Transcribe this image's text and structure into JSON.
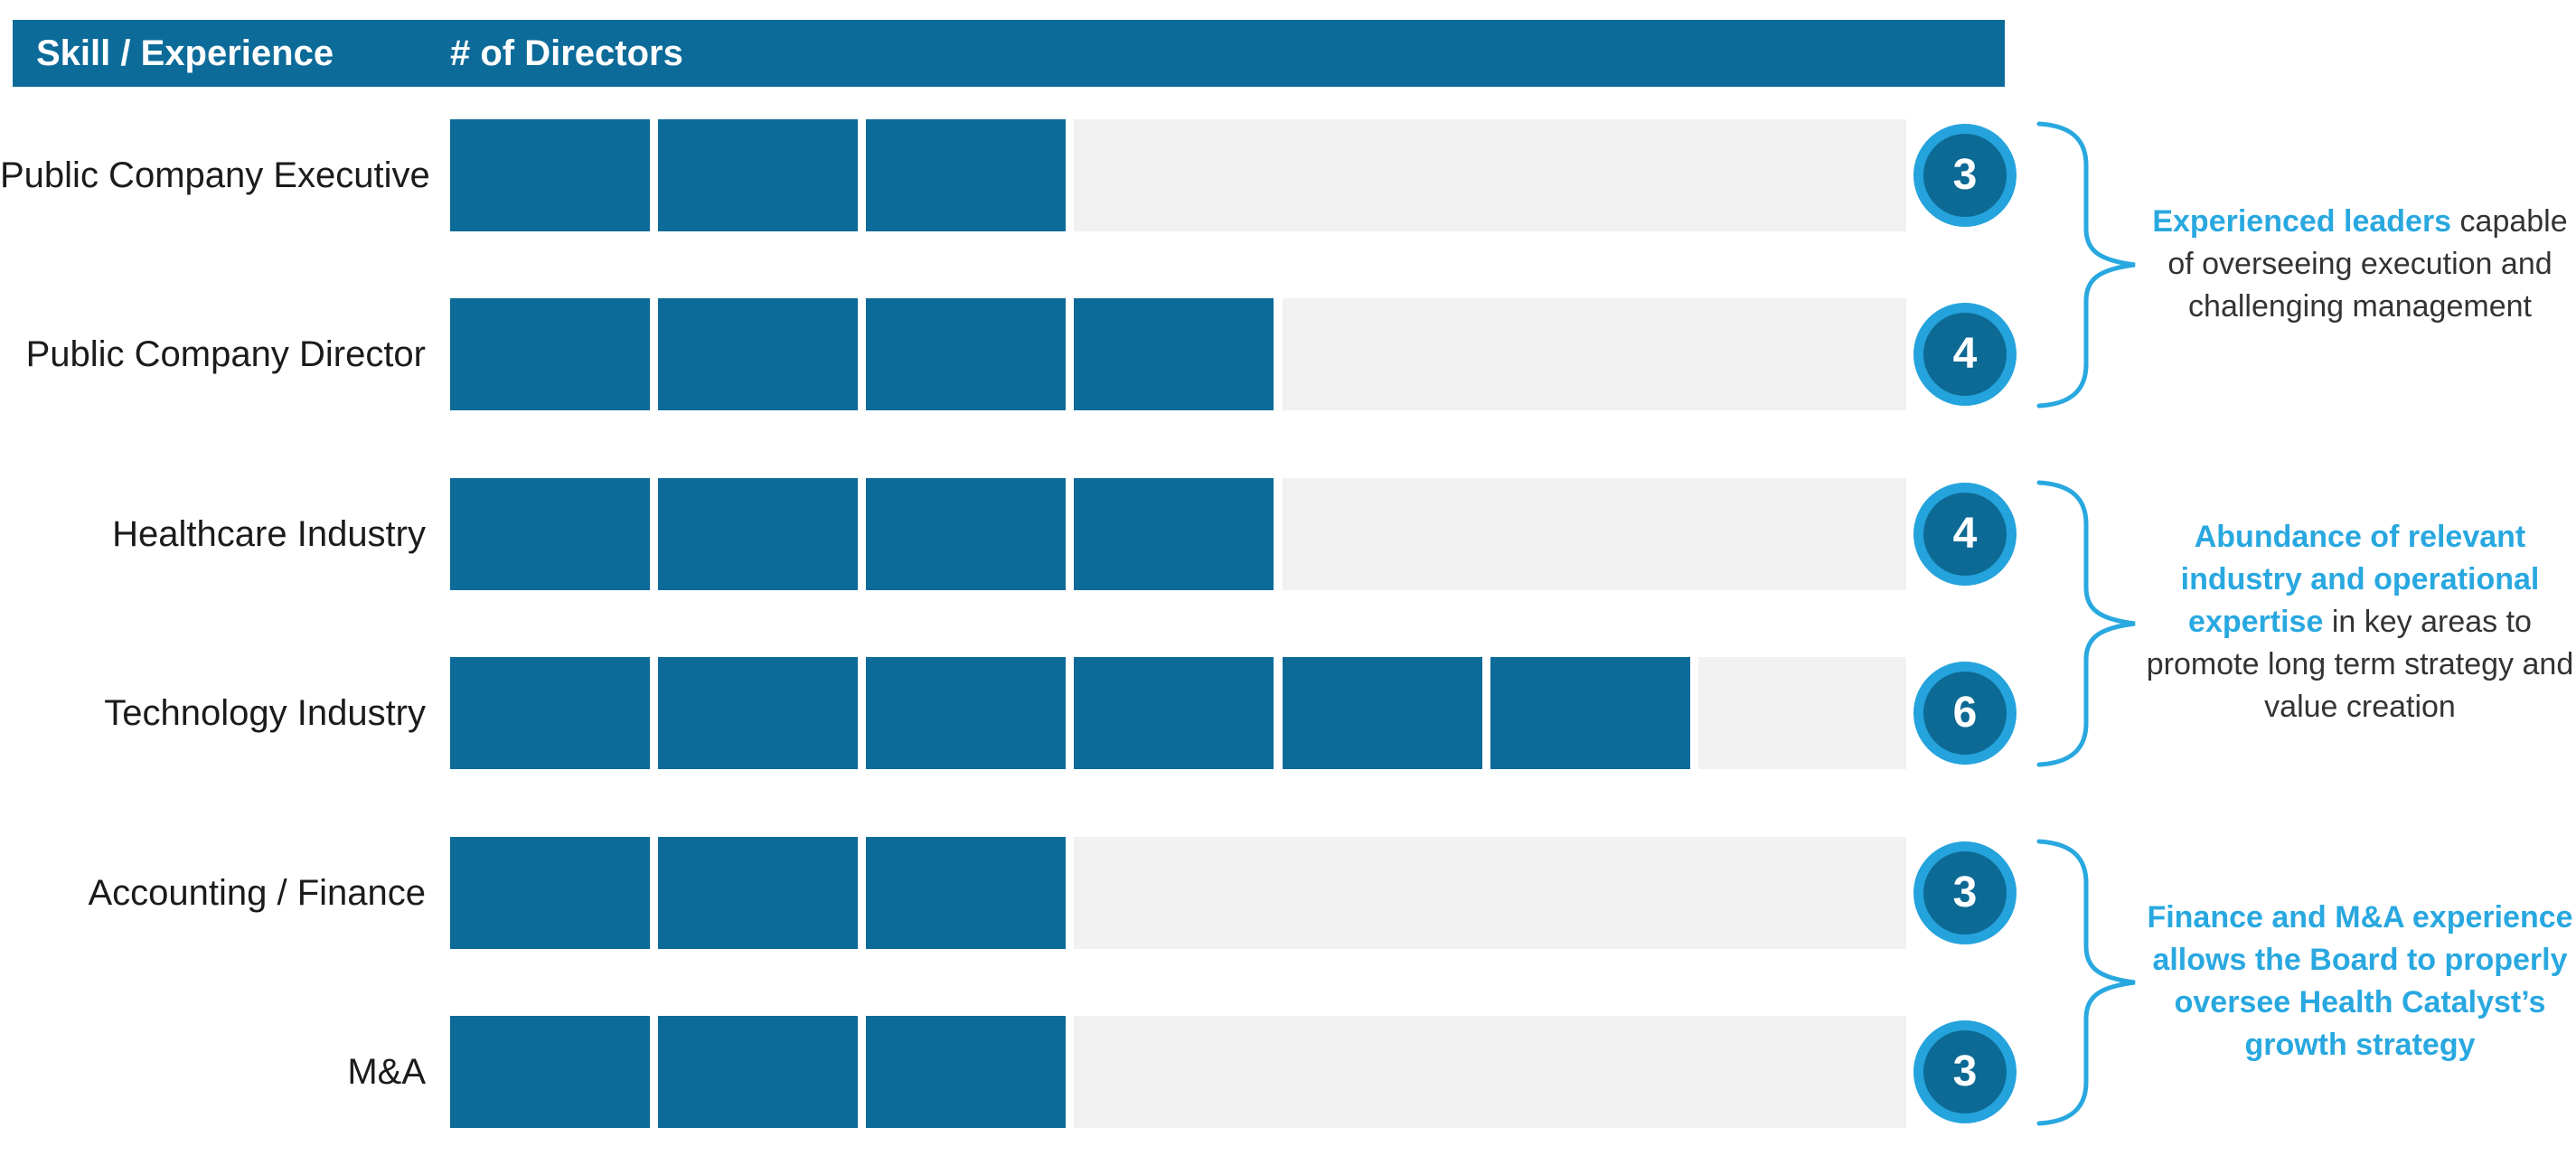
{
  "header": {
    "skill_label": "Skill / Experience",
    "directors_label": "# of Directors"
  },
  "scale": {
    "max_units": 7
  },
  "rows": [
    {
      "label": "Public Company Executive",
      "value": 3
    },
    {
      "label": "Public Company Director",
      "value": 4
    },
    {
      "label": "Healthcare Industry",
      "value": 4
    },
    {
      "label": "Technology Industry",
      "value": 6
    },
    {
      "label": "Accounting / Finance",
      "value": 3
    },
    {
      "label": "M&A",
      "value": 3
    }
  ],
  "groups": [
    {
      "row_indexes": [
        0,
        1
      ],
      "note_segments": [
        {
          "text": "Experienced leaders",
          "accent": true
        },
        {
          "text": " capable of overseeing execution and challenging management",
          "accent": false
        }
      ]
    },
    {
      "row_indexes": [
        2,
        3
      ],
      "note_segments": [
        {
          "text": "Abundance of relevant industry and operational expertise",
          "accent": true
        },
        {
          "text": " in key areas to promote long term strategy and value creation",
          "accent": false
        }
      ]
    },
    {
      "row_indexes": [
        4,
        5
      ],
      "note_segments": [
        {
          "text": "Finance and M&A experience allows the Board to properly oversee Health Catalyst’s growth strategy",
          "accent": true
        }
      ]
    }
  ],
  "colors": {
    "bar_teal": "#0c6b99",
    "header_teal": "#0c6b99",
    "track_gray": "#f1f1f2",
    "badge_ring_blue": "#24a3dc",
    "badge_inner_teal": "#0d6a94",
    "accent_blue": "#29a8e0",
    "note_text": "#333333",
    "header_text": "#ffffff"
  },
  "chart_data": {
    "type": "bar",
    "orientation": "horizontal",
    "title": "Skill / Experience — # of Directors",
    "xlabel": "# of Directors",
    "ylabel": "Skill / Experience",
    "categories": [
      "Public Company Executive",
      "Public Company Director",
      "Healthcare Industry",
      "Technology Industry",
      "Accounting / Finance",
      "M&A"
    ],
    "values": [
      3,
      4,
      4,
      6,
      3,
      3
    ],
    "xlim": [
      0,
      7
    ],
    "grid": false,
    "legend": false,
    "segmented_units": true,
    "data_labels": [
      3,
      4,
      4,
      6,
      3,
      3
    ],
    "annotations": [
      "Experienced leaders capable of overseeing execution and challenging management",
      "Abundance of relevant industry and operational expertise in key areas to promote long term strategy and value creation",
      "Finance and M&A experience allows the Board to properly oversee Health Catalyst’s growth strategy"
    ]
  }
}
